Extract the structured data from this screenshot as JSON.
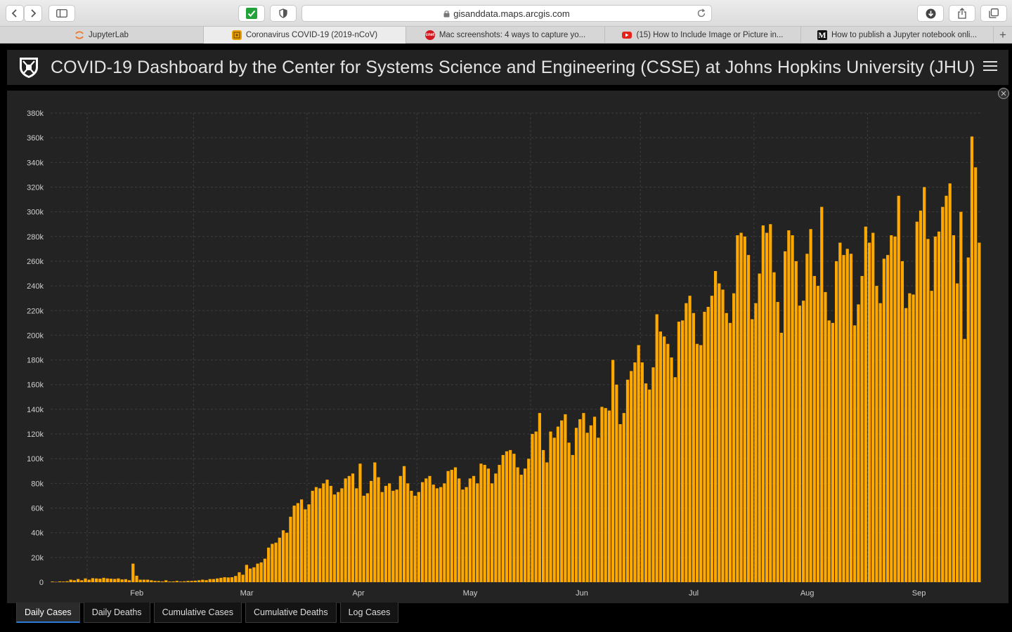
{
  "browser": {
    "url": "gisanddata.maps.arcgis.com",
    "tabs": [
      {
        "label": "JupyterLab",
        "icon": "jupyter-icon",
        "color": "#f37626"
      },
      {
        "label": "Coronavirus COVID-19 (2019-nCoV)",
        "icon": "arcgis-icon",
        "color": "#e8a100"
      },
      {
        "label": "Mac screenshots: 4 ways to capture yo...",
        "icon": "cnet-icon",
        "color": "#d4161f"
      },
      {
        "label": "(15) How to Include Image or Picture in...",
        "icon": "youtube-icon",
        "color": "#e62117"
      },
      {
        "label": "How to publish a Jupyter notebook onli...",
        "icon": "medium-icon",
        "color": "#111111"
      }
    ]
  },
  "header": {
    "title": "COVID-19 Dashboard by the Center for Systems Science and Engineering (CSSE) at Johns Hopkins University (JHU)"
  },
  "bottom_tabs": [
    {
      "label": "Daily Cases",
      "active": true
    },
    {
      "label": "Daily Deaths",
      "active": false
    },
    {
      "label": "Cumulative Cases",
      "active": false
    },
    {
      "label": "Cumulative Deaths",
      "active": false
    },
    {
      "label": "Log Cases",
      "active": false
    }
  ],
  "colors": {
    "bar": "#ffa900",
    "grid": "#3d3d3d",
    "background": "#232323"
  },
  "chart_data": {
    "type": "bar",
    "title": "",
    "xlabel": "",
    "ylabel": "",
    "ylim": [
      0,
      380000
    ],
    "yticks": [
      0,
      20000,
      40000,
      60000,
      80000,
      100000,
      120000,
      140000,
      160000,
      180000,
      200000,
      220000,
      240000,
      260000,
      280000,
      300000,
      320000,
      340000,
      360000,
      380000
    ],
    "ytick_labels": [
      "0",
      "20k",
      "40k",
      "60k",
      "80k",
      "100k",
      "120k",
      "140k",
      "160k",
      "180k",
      "200k",
      "220k",
      "240k",
      "260k",
      "280k",
      "300k",
      "320k",
      "340k",
      "360k",
      "380k"
    ],
    "x_start": "2020-01-22",
    "x_end": "2020-09-12",
    "xticks": [
      {
        "date": "2020-02-01",
        "label": "Feb"
      },
      {
        "date": "2020-03-01",
        "label": "Mar"
      },
      {
        "date": "2020-04-01",
        "label": "Apr"
      },
      {
        "date": "2020-05-01",
        "label": "May"
      },
      {
        "date": "2020-06-01",
        "label": "Jun"
      },
      {
        "date": "2020-07-01",
        "label": "Jul"
      },
      {
        "date": "2020-08-01",
        "label": "Aug"
      },
      {
        "date": "2020-09-01",
        "label": "Sep"
      }
    ],
    "grid": true,
    "values": [
      500,
      200,
      600,
      500,
      700,
      2000,
      1500,
      2500,
      1500,
      3000,
      2000,
      3200,
      3000,
      2800,
      3500,
      3000,
      2800,
      2600,
      3000,
      2200,
      2400,
      1500,
      15000,
      5200,
      2000,
      2000,
      2000,
      1500,
      1000,
      900,
      600,
      1500,
      500,
      600,
      1000,
      500,
      700,
      1000,
      1000,
      1200,
      1500,
      2000,
      1600,
      2500,
      2500,
      3000,
      3500,
      4000,
      3800,
      4000,
      5000,
      8000,
      6000,
      14000,
      11000,
      12000,
      15000,
      16000,
      19000,
      28000,
      31000,
      32000,
      36000,
      42000,
      40000,
      53000,
      62000,
      64000,
      67000,
      59000,
      63000,
      74000,
      77000,
      76000,
      80000,
      83000,
      78000,
      71000,
      73000,
      76000,
      84000,
      86000,
      88000,
      76000,
      96000,
      70000,
      72000,
      82000,
      97000,
      85000,
      73000,
      78000,
      80000,
      74000,
      75000,
      86000,
      94000,
      80000,
      74000,
      70000,
      73000,
      81000,
      84000,
      86000,
      79000,
      76000,
      77000,
      80000,
      90000,
      91000,
      93000,
      84000,
      75000,
      77000,
      84000,
      86000,
      80000,
      96000,
      95000,
      92000,
      80000,
      88000,
      95000,
      103000,
      106000,
      107000,
      104000,
      93000,
      87000,
      92000,
      100000,
      120000,
      122000,
      137000,
      107000,
      97000,
      122000,
      117000,
      126000,
      131000,
      136000,
      113000,
      103000,
      125000,
      132000,
      137000,
      121000,
      127000,
      134000,
      117000,
      142000,
      141000,
      139000,
      180000,
      160000,
      128000,
      137000,
      164000,
      171000,
      178000,
      192000,
      178000,
      161000,
      156000,
      174000,
      217000,
      203000,
      199000,
      193000,
      182000,
      166000,
      211000,
      212000,
      226000,
      232000,
      218000,
      193000,
      192000,
      219000,
      223000,
      232000,
      252000,
      242000,
      237000,
      218000,
      210000,
      234000,
      281000,
      283000,
      280000,
      265000,
      213000,
      226000,
      250000,
      289000,
      283000,
      290000,
      251000,
      227000,
      202000,
      268000,
      285000,
      281000,
      260000,
      224000,
      228000,
      266000,
      286000,
      248000,
      240000,
      304000,
      235000,
      212000,
      210000,
      260000,
      275000,
      265000,
      270000,
      266000,
      208000,
      225000,
      248000,
      288000,
      275000,
      283000,
      240000,
      226000,
      262000,
      265000,
      281000,
      280000,
      313000,
      260000,
      222000,
      234000,
      233000,
      292000,
      301000,
      320000,
      278000,
      236000,
      280000,
      284000,
      304000,
      313000,
      323000,
      281000,
      242000,
      300000,
      197000,
      263000,
      361000,
      336000,
      275000
    ]
  }
}
